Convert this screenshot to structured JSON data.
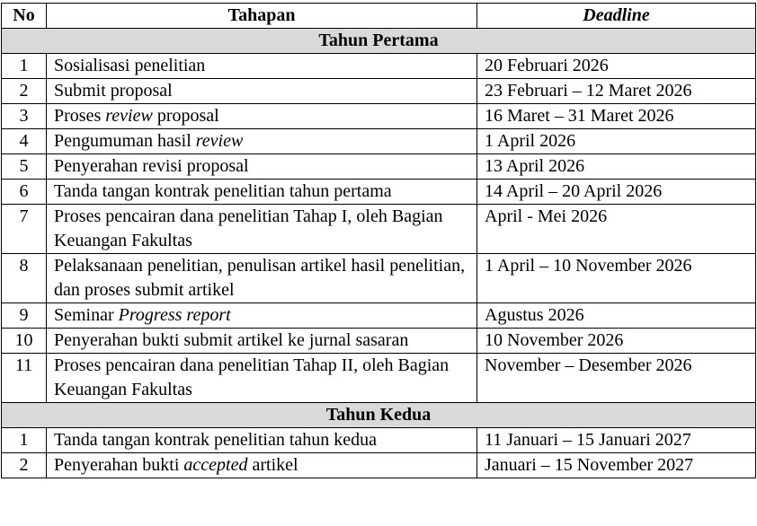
{
  "headers": {
    "no": "No",
    "stage": "Tahapan",
    "deadline": "Deadline"
  },
  "sections": [
    {
      "title": "Tahun Pertama",
      "rows": [
        {
          "no": "1",
          "stage": [
            {
              "t": "Sosialisasi penelitian"
            }
          ],
          "deadline": "20 Februari 2026"
        },
        {
          "no": "2",
          "stage": [
            {
              "t": "Submit proposal"
            }
          ],
          "deadline": "23 Februari – 12 Maret 2026"
        },
        {
          "no": "3",
          "stage": [
            {
              "t": "Proses "
            },
            {
              "t": "review",
              "i": true
            },
            {
              "t": " proposal"
            }
          ],
          "deadline": "16 Maret – 31 Maret 2026"
        },
        {
          "no": "4",
          "stage": [
            {
              "t": "Pengumuman hasil "
            },
            {
              "t": "review",
              "i": true
            }
          ],
          "deadline": "1 April 2026"
        },
        {
          "no": "5",
          "stage": [
            {
              "t": "Penyerahan revisi proposal"
            }
          ],
          "deadline": "13 April 2026"
        },
        {
          "no": "6",
          "stage": [
            {
              "t": "Tanda tangan kontrak penelitian tahun pertama"
            }
          ],
          "deadline": "14 April – 20 April 2026"
        },
        {
          "no": "7",
          "stage": [
            {
              "t": "Proses pencairan dana penelitian Tahap I, oleh Bagian Keuangan Fakultas"
            }
          ],
          "deadline": "April - Mei 2026"
        },
        {
          "no": "8",
          "stage": [
            {
              "t": "Pelaksanaan penelitian, penulisan artikel hasil penelitian, dan proses submit artikel"
            }
          ],
          "deadline": "1 April – 10 November 2026"
        },
        {
          "no": "9",
          "stage": [
            {
              "t": "Seminar "
            },
            {
              "t": "Progress report",
              "i": true
            }
          ],
          "deadline": "Agustus 2026"
        },
        {
          "no": "10",
          "stage": [
            {
              "t": "Penyerahan bukti submit artikel ke jurnal sasaran"
            }
          ],
          "deadline": "10 November 2026"
        },
        {
          "no": "11",
          "stage": [
            {
              "t": "Proses pencairan dana penelitian Tahap II, oleh Bagian Keuangan Fakultas"
            }
          ],
          "deadline": "November – Desember 2026"
        }
      ]
    },
    {
      "title": "Tahun Kedua",
      "rows": [
        {
          "no": "1",
          "stage": [
            {
              "t": "Tanda tangan kontrak penelitian tahun kedua"
            }
          ],
          "deadline": "11 Januari – 15 Januari 2027"
        },
        {
          "no": "2",
          "stage": [
            {
              "t": "Penyerahan bukti "
            },
            {
              "t": "accepted",
              "i": true
            },
            {
              "t": " artikel"
            }
          ],
          "deadline": "Januari – 15 November 2027"
        }
      ]
    }
  ]
}
